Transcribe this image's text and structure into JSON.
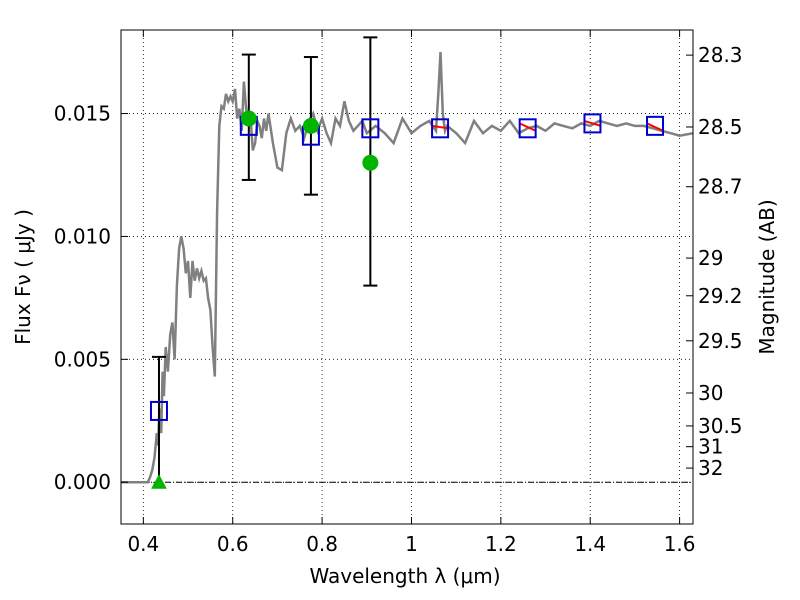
{
  "chart_data": {
    "type": "scatter",
    "xlabel": "Wavelength  λ (μm)",
    "ylabel": "Flux  Fν  ( μJy )",
    "ylabel_right": "Magnitude (AB)",
    "xlim": [
      0.35,
      1.63
    ],
    "ylim": [
      -0.0017,
      0.0184
    ],
    "grid": true,
    "x_ticks": [
      0.4,
      0.6,
      0.8,
      1.0,
      1.2,
      1.4,
      1.6
    ],
    "x_tick_labels": [
      "0.4",
      "0.6",
      "0.8",
      "1",
      "1.2",
      "1.4",
      "1.6"
    ],
    "y_ticks": [
      0.0,
      0.005,
      0.01,
      0.015
    ],
    "y_tick_labels": [
      "0.000",
      "0.005",
      "0.010",
      "0.015"
    ],
    "mag_ticks": [
      28.3,
      28.5,
      28.7,
      29,
      29.2,
      29.5,
      30,
      30.5,
      31,
      32
    ],
    "mag_tick_labels": [
      "28.3",
      "28.5",
      "28.7",
      "29",
      "29.2",
      "29.5",
      "30",
      "30.5",
      "31",
      "32"
    ],
    "model_sed": {
      "color": "#808080",
      "x": [
        0.35,
        0.41,
        0.415,
        0.42,
        0.425,
        0.43,
        0.433,
        0.436,
        0.44,
        0.443,
        0.446,
        0.45,
        0.455,
        0.46,
        0.465,
        0.47,
        0.475,
        0.48,
        0.485,
        0.49,
        0.495,
        0.5,
        0.505,
        0.51,
        0.515,
        0.52,
        0.525,
        0.53,
        0.535,
        0.54,
        0.545,
        0.55,
        0.555,
        0.56,
        0.565,
        0.57,
        0.575,
        0.58,
        0.585,
        0.59,
        0.595,
        0.6,
        0.605,
        0.61,
        0.615,
        0.62,
        0.625,
        0.63,
        0.635,
        0.64,
        0.645,
        0.65,
        0.655,
        0.66,
        0.665,
        0.67,
        0.675,
        0.68,
        0.69,
        0.7,
        0.71,
        0.72,
        0.73,
        0.74,
        0.75,
        0.76,
        0.77,
        0.78,
        0.79,
        0.8,
        0.81,
        0.82,
        0.83,
        0.84,
        0.85,
        0.86,
        0.87,
        0.88,
        0.89,
        0.9,
        0.92,
        0.94,
        0.96,
        0.98,
        1.0,
        1.02,
        1.04,
        1.055,
        1.06,
        1.065,
        1.07,
        1.075,
        1.08,
        1.1,
        1.12,
        1.14,
        1.16,
        1.18,
        1.2,
        1.22,
        1.24,
        1.26,
        1.28,
        1.3,
        1.32,
        1.34,
        1.36,
        1.38,
        1.4,
        1.42,
        1.44,
        1.46,
        1.48,
        1.5,
        1.52,
        1.54,
        1.56,
        1.58,
        1.6,
        1.63
      ],
      "y": [
        0.0,
        0.0,
        0.0002,
        0.0005,
        0.001,
        0.002,
        0.0015,
        0.003,
        0.002,
        0.0045,
        0.0035,
        0.0055,
        0.0045,
        0.006,
        0.0065,
        0.005,
        0.008,
        0.0095,
        0.01,
        0.0095,
        0.0085,
        0.009,
        0.0075,
        0.009,
        0.0082,
        0.0087,
        0.0083,
        0.0086,
        0.0082,
        0.0083,
        0.0075,
        0.007,
        0.0055,
        0.0043,
        0.011,
        0.0145,
        0.0153,
        0.0152,
        0.0158,
        0.0155,
        0.0157,
        0.0155,
        0.016,
        0.0148,
        0.0152,
        0.0143,
        0.0163,
        0.0152,
        0.0145,
        0.0148,
        0.0135,
        0.0138,
        0.0147,
        0.0145,
        0.014,
        0.0148,
        0.0143,
        0.015,
        0.0138,
        0.0128,
        0.0127,
        0.0142,
        0.0148,
        0.0143,
        0.0145,
        0.014,
        0.0147,
        0.015,
        0.0143,
        0.0148,
        0.0142,
        0.0138,
        0.0148,
        0.0145,
        0.0155,
        0.0147,
        0.0143,
        0.0145,
        0.0147,
        0.0142,
        0.0145,
        0.0142,
        0.0138,
        0.0148,
        0.0142,
        0.0145,
        0.0147,
        0.0143,
        0.0158,
        0.0175,
        0.015,
        0.0143,
        0.0145,
        0.0142,
        0.0138,
        0.0147,
        0.0142,
        0.0145,
        0.0143,
        0.0147,
        0.0142,
        0.0144,
        0.0145,
        0.0143,
        0.0146,
        0.0145,
        0.0144,
        0.0146,
        0.0145,
        0.0147,
        0.0146,
        0.0145,
        0.0146,
        0.0145,
        0.0145,
        0.0144,
        0.0143,
        0.0142,
        0.0141,
        0.0142
      ]
    },
    "model_photometry": {
      "marker": "open-square",
      "color": "#0000cc",
      "x": [
        0.435,
        0.636,
        0.775,
        0.908,
        1.064,
        1.26,
        1.405,
        1.545
      ],
      "y": [
        0.0029,
        0.0145,
        0.0141,
        0.0144,
        0.0144,
        0.0144,
        0.0146,
        0.0145
      ]
    },
    "observed_photometry": {
      "marker": "filled-circle",
      "color": "#00b400",
      "x": [
        0.636,
        0.775,
        0.908
      ],
      "y": [
        0.0148,
        0.0145,
        0.013
      ],
      "yerr_low": [
        0.0025,
        0.0028,
        0.005
      ],
      "yerr_high": [
        0.0026,
        0.0028,
        0.0051
      ]
    },
    "upper_limit": {
      "marker": "filled-triangle",
      "color": "#00b400",
      "x": 0.435,
      "y": 0.0,
      "yerr_low": 0.0,
      "yerr_high": 0.0051
    },
    "red_segments": {
      "color": "#ff0000",
      "x": [
        1.064,
        1.26,
        1.405,
        1.545
      ],
      "y_start": [
        0.0145,
        0.0146,
        0.0147,
        0.0146
      ],
      "y_end": [
        0.0144,
        0.0143,
        0.0145,
        0.0143
      ]
    }
  }
}
